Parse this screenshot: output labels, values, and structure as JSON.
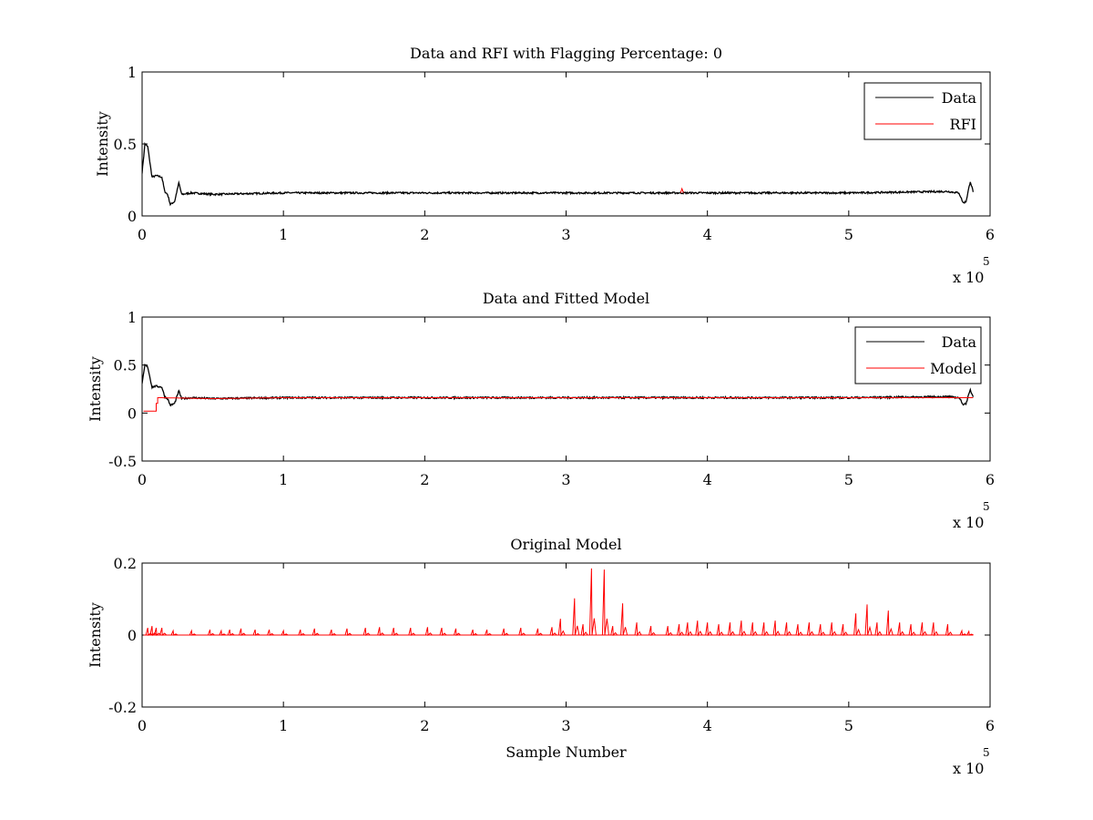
{
  "chart_data": [
    {
      "type": "line",
      "title": "Data and RFI with Flagging Percentage: 0",
      "xlabel": "",
      "ylabel": "Intensity",
      "xlim": [
        0,
        6
      ],
      "ylim": [
        0,
        1
      ],
      "x_ticks": [
        "0",
        "1",
        "2",
        "3",
        "4",
        "5",
        "6"
      ],
      "y_ticks": [
        "0",
        "0.5",
        "1"
      ],
      "x_multiplier": {
        "base": "x 10",
        "exponent": "5"
      },
      "legend": {
        "position": "top-right",
        "entries": [
          "Data",
          "RFI"
        ]
      },
      "grid": false,
      "series": [
        {
          "name": "Data",
          "color": "#000000",
          "x": [
            0,
            0.02,
            0.04,
            0.07,
            0.1,
            0.14,
            0.16,
            0.18,
            0.2,
            0.23,
            0.26,
            0.28,
            0.35,
            0.5,
            1,
            2,
            3,
            4,
            5,
            5.7,
            5.78,
            5.81,
            5.83,
            5.86,
            5.88
          ],
          "y": [
            0.3,
            0.5,
            0.48,
            0.27,
            0.28,
            0.27,
            0.17,
            0.15,
            0.08,
            0.1,
            0.23,
            0.15,
            0.16,
            0.15,
            0.16,
            0.16,
            0.16,
            0.16,
            0.16,
            0.17,
            0.16,
            0.09,
            0.1,
            0.24,
            0.17
          ]
        },
        {
          "name": "RFI",
          "color": "#ff0000",
          "x": [
            3.81,
            3.82,
            3.83
          ],
          "y": [
            0.16,
            0.19,
            0.16
          ]
        }
      ]
    },
    {
      "type": "line",
      "title": "Data and Fitted Model",
      "xlabel": "",
      "ylabel": "Intensity",
      "xlim": [
        0,
        6
      ],
      "ylim": [
        -0.5,
        1
      ],
      "x_ticks": [
        "0",
        "1",
        "2",
        "3",
        "4",
        "5",
        "6"
      ],
      "y_ticks": [
        "-0.5",
        "0",
        "0.5",
        "1"
      ],
      "x_multiplier": {
        "base": "x 10",
        "exponent": "5"
      },
      "legend": {
        "position": "top-right",
        "entries": [
          "Data",
          "Model"
        ]
      },
      "grid": false,
      "series": [
        {
          "name": "Data",
          "color": "#000000",
          "x": [
            0,
            0.02,
            0.04,
            0.07,
            0.1,
            0.14,
            0.16,
            0.18,
            0.2,
            0.23,
            0.26,
            0.28,
            0.35,
            0.5,
            1,
            2,
            3,
            4,
            5,
            5.7,
            5.78,
            5.81,
            5.83,
            5.86,
            5.88
          ],
          "y": [
            0.3,
            0.5,
            0.48,
            0.27,
            0.28,
            0.27,
            0.17,
            0.15,
            0.08,
            0.1,
            0.23,
            0.15,
            0.16,
            0.15,
            0.16,
            0.16,
            0.16,
            0.16,
            0.16,
            0.17,
            0.16,
            0.09,
            0.1,
            0.24,
            0.17
          ]
        },
        {
          "name": "Model",
          "color": "#ff0000",
          "x": [
            0.01,
            0.1,
            0.1,
            0.11,
            0.11,
            0.12,
            0.12,
            0.5,
            1,
            2,
            3,
            4,
            5,
            5.88
          ],
          "y": [
            0.02,
            0.02,
            0.1,
            0.1,
            0.16,
            0.16,
            0.16,
            0.15,
            0.16,
            0.16,
            0.16,
            0.16,
            0.16,
            0.16
          ]
        }
      ]
    },
    {
      "type": "line",
      "title": "Original Model",
      "xlabel": "Sample Number",
      "ylabel": "Intensity",
      "xlim": [
        0,
        6
      ],
      "ylim": [
        -0.2,
        0.2
      ],
      "x_ticks": [
        "0",
        "1",
        "2",
        "3",
        "4",
        "5",
        "6"
      ],
      "y_ticks": [
        "-0.2",
        "0",
        "0.2"
      ],
      "x_multiplier": {
        "base": "x 10",
        "exponent": "5"
      },
      "legend": null,
      "grid": false,
      "series": [
        {
          "color": "#ff0000",
          "baseline": 0,
          "x_range": [
            0.01,
            5.88
          ],
          "spikes": [
            {
              "x": 0.04,
              "y": 0.02
            },
            {
              "x": 0.07,
              "y": 0.025
            },
            {
              "x": 0.1,
              "y": 0.02
            },
            {
              "x": 0.14,
              "y": 0.02
            },
            {
              "x": 0.22,
              "y": 0.012
            },
            {
              "x": 0.35,
              "y": 0.012
            },
            {
              "x": 0.48,
              "y": 0.015
            },
            {
              "x": 0.56,
              "y": 0.012
            },
            {
              "x": 0.62,
              "y": 0.015
            },
            {
              "x": 0.7,
              "y": 0.018
            },
            {
              "x": 0.8,
              "y": 0.015
            },
            {
              "x": 0.9,
              "y": 0.015
            },
            {
              "x": 1.0,
              "y": 0.012
            },
            {
              "x": 1.12,
              "y": 0.015
            },
            {
              "x": 1.22,
              "y": 0.018
            },
            {
              "x": 1.34,
              "y": 0.015
            },
            {
              "x": 1.45,
              "y": 0.018
            },
            {
              "x": 1.58,
              "y": 0.02
            },
            {
              "x": 1.68,
              "y": 0.022
            },
            {
              "x": 1.78,
              "y": 0.02
            },
            {
              "x": 1.9,
              "y": 0.02
            },
            {
              "x": 2.02,
              "y": 0.022
            },
            {
              "x": 2.12,
              "y": 0.02
            },
            {
              "x": 2.22,
              "y": 0.018
            },
            {
              "x": 2.34,
              "y": 0.015
            },
            {
              "x": 2.44,
              "y": 0.015
            },
            {
              "x": 2.56,
              "y": 0.018
            },
            {
              "x": 2.68,
              "y": 0.02
            },
            {
              "x": 2.8,
              "y": 0.018
            },
            {
              "x": 2.9,
              "y": 0.022
            },
            {
              "x": 2.96,
              "y": 0.045
            },
            {
              "x": 3.06,
              "y": 0.102
            },
            {
              "x": 3.12,
              "y": 0.03
            },
            {
              "x": 3.18,
              "y": 0.185
            },
            {
              "x": 3.27,
              "y": 0.182
            },
            {
              "x": 3.33,
              "y": 0.025
            },
            {
              "x": 3.4,
              "y": 0.088
            },
            {
              "x": 3.5,
              "y": 0.035
            },
            {
              "x": 3.6,
              "y": 0.025
            },
            {
              "x": 3.72,
              "y": 0.025
            },
            {
              "x": 3.8,
              "y": 0.03
            },
            {
              "x": 3.86,
              "y": 0.035
            },
            {
              "x": 3.93,
              "y": 0.04
            },
            {
              "x": 4.0,
              "y": 0.035
            },
            {
              "x": 4.08,
              "y": 0.03
            },
            {
              "x": 4.16,
              "y": 0.035
            },
            {
              "x": 4.24,
              "y": 0.04
            },
            {
              "x": 4.32,
              "y": 0.035
            },
            {
              "x": 4.4,
              "y": 0.035
            },
            {
              "x": 4.48,
              "y": 0.04
            },
            {
              "x": 4.56,
              "y": 0.035
            },
            {
              "x": 4.64,
              "y": 0.03
            },
            {
              "x": 4.72,
              "y": 0.035
            },
            {
              "x": 4.8,
              "y": 0.03
            },
            {
              "x": 4.88,
              "y": 0.035
            },
            {
              "x": 4.96,
              "y": 0.03
            },
            {
              "x": 5.05,
              "y": 0.06
            },
            {
              "x": 5.13,
              "y": 0.085
            },
            {
              "x": 5.2,
              "y": 0.035
            },
            {
              "x": 5.28,
              "y": 0.068
            },
            {
              "x": 5.36,
              "y": 0.035
            },
            {
              "x": 5.44,
              "y": 0.03
            },
            {
              "x": 5.52,
              "y": 0.035
            },
            {
              "x": 5.6,
              "y": 0.035
            },
            {
              "x": 5.7,
              "y": 0.03
            },
            {
              "x": 5.8,
              "y": 0.012
            },
            {
              "x": 5.85,
              "y": 0.01
            }
          ]
        }
      ]
    }
  ]
}
